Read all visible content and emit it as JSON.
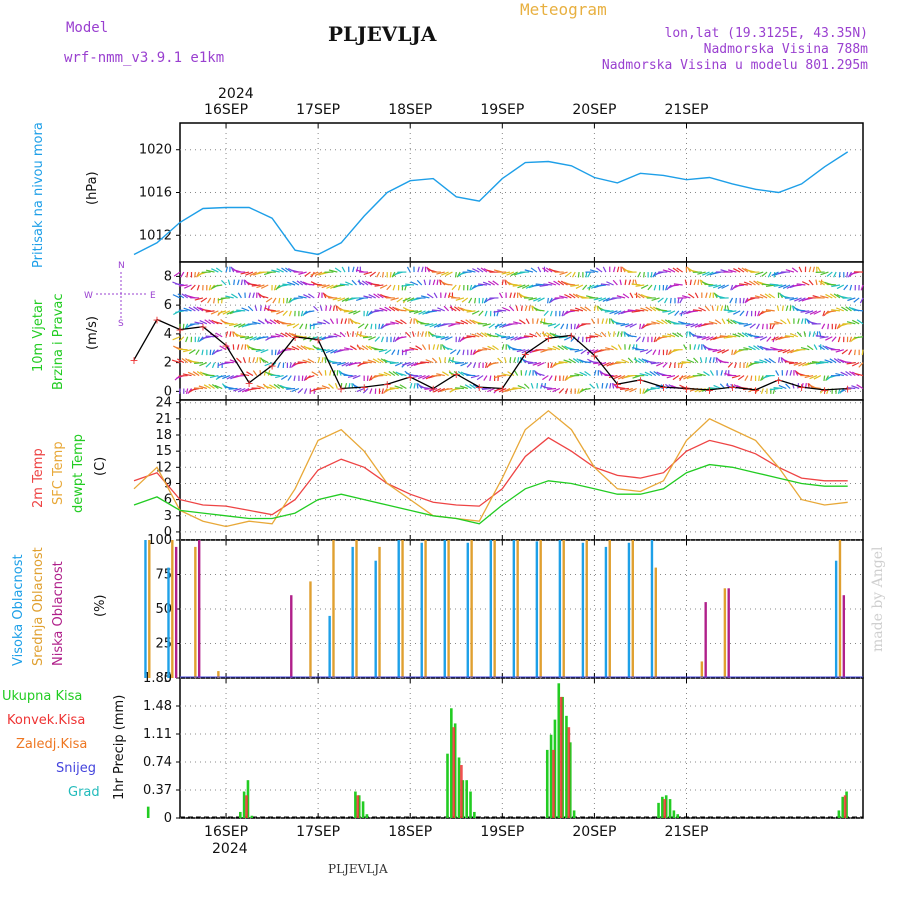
{
  "header": {
    "model_label": "Model",
    "model_name": "wrf-nmm_v3.9.1 e1km",
    "station": "PLJEVLJA",
    "meteogram": "Meteogram",
    "lonlat": "lon,lat (19.3125E, 43.35N)",
    "altitude": "Nadmorska Visina 788m",
    "model_altitude": "Nadmorska Visina u modelu 801.295m",
    "footer_station": "PLJEVLJA",
    "watermark": "made by Angel"
  },
  "colors": {
    "pressure": "#1e9fe8",
    "temp2m": "#ee4444",
    "sfc": "#e8a838",
    "dewpt": "#22cc22",
    "high_cloud": "#1ea0e8",
    "mid_cloud": "#e0a030",
    "low_cloud": "#b0208a",
    "total_precip": "#22cc22",
    "conv_precip": "#ee3333",
    "frozen_precip": "#ee7722",
    "snow": "#4444dd",
    "graupel": "#22bbbb",
    "header_purple": "#9a40d0",
    "meteogram_orange": "#e8b040"
  },
  "chart_data": [
    {
      "type": "line",
      "title": "Pritisak na nivou mora",
      "ylabel": "(hPa)",
      "ylim": [
        1009.5,
        1022.5
      ],
      "yticks": [
        "1012",
        "1016",
        "1020"
      ],
      "grid": true,
      "x_ticks_top": [
        "16SEP",
        "17SEP",
        "18SEP",
        "19SEP",
        "20SEP",
        "21SEP"
      ],
      "x_year_top": "2024",
      "x_start_hour": 12,
      "series": [
        {
          "name": "Pritisak na nivou mora",
          "x": [
            0,
            6,
            12,
            18,
            24,
            30,
            36,
            42,
            48,
            54,
            60,
            66,
            72,
            78,
            84,
            90,
            96,
            102,
            108,
            114,
            120,
            126,
            132,
            138,
            144,
            150,
            156,
            162,
            168,
            174,
            180,
            186
          ],
          "values": [
            1010.2,
            1011.3,
            1013.2,
            1014.5,
            1014.6,
            1014.6,
            1013.6,
            1010.6,
            1010.2,
            1011.3,
            1013.8,
            1016.0,
            1017.1,
            1017.3,
            1015.6,
            1015.2,
            1017.3,
            1018.8,
            1018.9,
            1018.5,
            1017.4,
            1016.9,
            1017.8,
            1017.6,
            1017.2,
            1017.4,
            1016.8,
            1016.3,
            1016.0,
            1016.8,
            1018.4,
            1019.8
          ]
        }
      ]
    },
    {
      "type": "line",
      "title": "10m Vjetar Brzina i Pravac",
      "ylabel": "(m/s)",
      "ylim": [
        -0.6,
        9.0
      ],
      "yticks": [
        "0",
        "2",
        "4",
        "6",
        "8"
      ],
      "grid": true,
      "compass": [
        "N",
        "E",
        "S",
        "W"
      ],
      "series": [
        {
          "name": "10m Vjetar",
          "x": [
            0,
            6,
            12,
            18,
            24,
            30,
            36,
            42,
            48,
            54,
            60,
            66,
            72,
            78,
            84,
            90,
            96,
            102,
            108,
            114,
            120,
            126,
            132,
            138,
            144,
            150,
            156,
            162,
            168,
            174,
            180,
            186
          ],
          "values": [
            2.2,
            5.0,
            4.3,
            4.5,
            3.2,
            0.6,
            1.8,
            3.8,
            3.6,
            0.2,
            0.3,
            0.5,
            1.0,
            0.2,
            1.2,
            0.3,
            0.2,
            2.6,
            3.7,
            3.9,
            2.5,
            0.5,
            0.8,
            0.3,
            0.2,
            0.1,
            0.3,
            0.1,
            0.8,
            0.3,
            0.1,
            0.2
          ]
        }
      ]
    },
    {
      "type": "line",
      "title": "2m Temp / SFC Temp / dewpt Temp",
      "ylabel": "(C)",
      "ylim": [
        -1.5,
        24.5
      ],
      "yticks": [
        "0",
        "3",
        "6",
        "9",
        "12",
        "15",
        "18",
        "21",
        "24"
      ],
      "grid": true,
      "series": [
        {
          "name": "2m Temp",
          "x": [
            0,
            6,
            12,
            18,
            24,
            30,
            36,
            42,
            48,
            54,
            60,
            66,
            72,
            78,
            84,
            90,
            96,
            102,
            108,
            114,
            120,
            126,
            132,
            138,
            144,
            150,
            156,
            162,
            168,
            174,
            180,
            186
          ],
          "values": [
            9.5,
            11.0,
            6.0,
            5.0,
            4.8,
            4.0,
            3.2,
            6.0,
            11.5,
            13.5,
            12.0,
            9.0,
            7.0,
            5.5,
            5.0,
            4.8,
            8.0,
            14.0,
            17.5,
            15.0,
            12.0,
            10.5,
            10.0,
            11.0,
            15.0,
            17.0,
            16.0,
            14.5,
            12.0,
            10.0,
            9.5,
            9.5
          ]
        },
        {
          "name": "SFC Temp",
          "x": [
            0,
            6,
            12,
            18,
            24,
            30,
            36,
            42,
            48,
            54,
            60,
            66,
            72,
            78,
            84,
            90,
            96,
            102,
            108,
            114,
            120,
            126,
            132,
            138,
            144,
            150,
            156,
            162,
            168,
            174,
            180,
            186
          ],
          "values": [
            8.0,
            12.0,
            4.0,
            2.0,
            1.0,
            2.0,
            1.5,
            8.0,
            17.0,
            19.0,
            15.0,
            9.0,
            6.0,
            3.0,
            2.5,
            2.0,
            10.0,
            19.0,
            22.5,
            19.0,
            12.0,
            8.0,
            7.5,
            9.5,
            17.0,
            21.0,
            19.0,
            17.0,
            12.0,
            6.0,
            5.0,
            5.5
          ]
        },
        {
          "name": "dewpt Temp",
          "x": [
            0,
            6,
            12,
            18,
            24,
            30,
            36,
            42,
            48,
            54,
            60,
            66,
            72,
            78,
            84,
            90,
            96,
            102,
            108,
            114,
            120,
            126,
            132,
            138,
            144,
            150,
            156,
            162,
            168,
            174,
            180,
            186
          ],
          "values": [
            5.0,
            6.5,
            4.0,
            3.5,
            3.0,
            2.5,
            2.5,
            3.5,
            6.0,
            7.0,
            6.0,
            5.0,
            4.0,
            3.0,
            2.5,
            1.5,
            5.0,
            8.0,
            9.5,
            9.0,
            8.0,
            7.0,
            7.0,
            8.0,
            11.0,
            12.5,
            12.0,
            11.0,
            10.0,
            9.0,
            8.5,
            8.5
          ]
        }
      ]
    },
    {
      "type": "bar",
      "title": "Visoka Oblacnost / Srednja Oblacnost / Niska Oblacnost",
      "ylabel": "(%)",
      "ylim": [
        0,
        100
      ],
      "yticks": [
        "0",
        "25",
        "50",
        "75",
        "100"
      ],
      "grid": true,
      "series": [
        {
          "name": "Visoka Oblacnost",
          "x": [
            3,
            9,
            15,
            21,
            27,
            33,
            39,
            45,
            51,
            57,
            63,
            69,
            75,
            81,
            87,
            93,
            99,
            105,
            111,
            117,
            123,
            129,
            135,
            141,
            147,
            153,
            159,
            165,
            171,
            177,
            183
          ],
          "values": [
            100,
            80,
            0,
            0,
            0,
            0,
            0,
            0,
            45,
            95,
            85,
            100,
            98,
            100,
            98,
            100,
            100,
            99,
            100,
            98,
            95,
            98,
            100,
            0,
            0,
            0,
            0,
            0,
            0,
            0,
            85
          ]
        },
        {
          "name": "Srednja Oblacnost",
          "x": [
            4,
            10,
            16,
            22,
            28,
            34,
            40,
            46,
            52,
            58,
            64,
            70,
            76,
            82,
            88,
            94,
            100,
            106,
            112,
            118,
            124,
            130,
            136,
            142,
            148,
            154,
            160,
            166,
            172,
            178,
            184
          ],
          "values": [
            100,
            100,
            95,
            5,
            0,
            0,
            0,
            70,
            100,
            100,
            95,
            100,
            100,
            100,
            100,
            100,
            100,
            100,
            100,
            100,
            100,
            100,
            80,
            0,
            12,
            65,
            0,
            0,
            0,
            0,
            100
          ]
        },
        {
          "name": "Niska Oblacnost",
          "x": [
            5,
            11,
            17,
            23,
            29,
            35,
            41,
            47,
            53,
            59,
            65,
            71,
            77,
            83,
            89,
            95,
            101,
            107,
            113,
            119,
            125,
            131,
            137,
            143,
            149,
            155,
            161,
            167,
            173,
            179,
            185
          ],
          "values": [
            0,
            95,
            100,
            0,
            0,
            0,
            60,
            0,
            0,
            0,
            0,
            0,
            0,
            0,
            0,
            0,
            0,
            0,
            0,
            0,
            0,
            0,
            0,
            0,
            55,
            65,
            0,
            0,
            0,
            0,
            60
          ]
        }
      ]
    },
    {
      "type": "bar",
      "title": "Ukupna Kisa / Konvek.Kisa / Zaledj.Kisa / Snijeg / Grad",
      "ylabel": "1hr Precip (mm)",
      "ylim": [
        0,
        1.85
      ],
      "yticks": [
        "0",
        "0.37",
        "0.74",
        "1.11",
        "1.48",
        "1.85"
      ],
      "grid": true,
      "x_ticks_bottom": [
        "16SEP",
        "17SEP",
        "18SEP",
        "19SEP",
        "20SEP",
        "21SEP"
      ],
      "x_year_bottom": "2024",
      "series": [
        {
          "name": "Ukupna Kisa",
          "x": [
            4,
            28,
            29,
            30,
            31,
            58,
            59,
            60,
            61,
            82,
            83,
            84,
            85,
            86,
            87,
            88,
            89,
            108,
            109,
            110,
            111,
            112,
            113,
            114,
            115,
            137,
            138,
            139,
            140,
            141,
            142,
            184,
            185,
            186
          ],
          "values": [
            0.15,
            0.08,
            0.35,
            0.5,
            0.03,
            0.35,
            0.3,
            0.22,
            0.05,
            0.85,
            1.45,
            1.25,
            0.8,
            0.5,
            0.5,
            0.35,
            0.08,
            0.9,
            1.1,
            1.3,
            1.78,
            1.6,
            1.35,
            1.0,
            0.1,
            0.2,
            0.28,
            0.3,
            0.25,
            0.1,
            0.05,
            0.1,
            0.28,
            0.35
          ]
        },
        {
          "name": "Konvek.Kisa",
          "x": [
            29,
            58,
            83,
            85,
            109,
            111,
            113,
            138,
            185
          ],
          "values": [
            0.3,
            0.3,
            1.2,
            0.7,
            0.9,
            1.6,
            1.2,
            0.25,
            0.3
          ]
        }
      ]
    }
  ],
  "legend": {
    "pressure": "Pritisak na nivou mora",
    "wind1": "10m Vjetar",
    "wind2": "Brzina i Pravac",
    "temp2m": "2m Temp",
    "sfc": "SFC Temp",
    "dewpt": "dewpt Temp",
    "high": "Visoka Oblacnost",
    "mid": "Srednja Oblacnost",
    "low": "Niska Oblacnost",
    "total": "Ukupna Kisa",
    "conv": "Konvek.Kisa",
    "frozen": "Zaledj.Kisa",
    "snow": "Snijeg",
    "graupel": "Grad"
  }
}
